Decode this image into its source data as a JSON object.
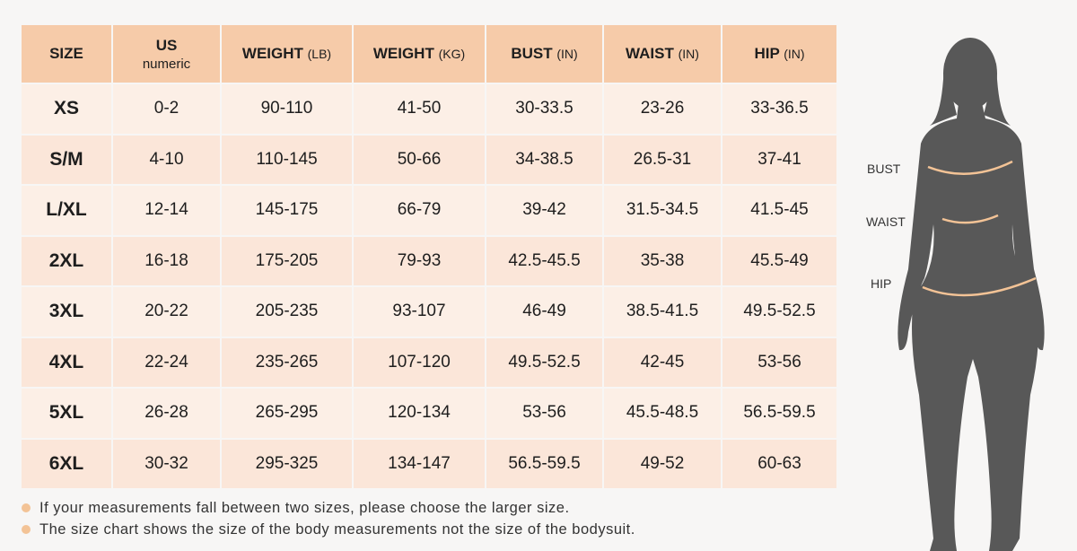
{
  "table": {
    "header": [
      {
        "text": "SIZE"
      },
      {
        "text": "US",
        "sub": "numeric"
      },
      {
        "text": "WEIGHT",
        "unit": "(LB)"
      },
      {
        "text": "WEIGHT",
        "unit": "(KG)"
      },
      {
        "text": "BUST",
        "unit": "(IN)"
      },
      {
        "text": "WAIST",
        "unit": "(IN)"
      },
      {
        "text": "HIP",
        "unit": "(IN)"
      }
    ],
    "rows": [
      [
        "XS",
        "0-2",
        "90-110",
        "41-50",
        "30-33.5",
        "23-26",
        "33-36.5"
      ],
      [
        "S/M",
        "4-10",
        "110-145",
        "50-66",
        "34-38.5",
        "26.5-31",
        "37-41"
      ],
      [
        "L/XL",
        "12-14",
        "145-175",
        "66-79",
        "39-42",
        "31.5-34.5",
        "41.5-45"
      ],
      [
        "2XL",
        "16-18",
        "175-205",
        "79-93",
        "42.5-45.5",
        "35-38",
        "45.5-49"
      ],
      [
        "3XL",
        "20-22",
        "205-235",
        "93-107",
        "46-49",
        "38.5-41.5",
        "49.5-52.5"
      ],
      [
        "4XL",
        "22-24",
        "235-265",
        "107-120",
        "49.5-52.5",
        "42-45",
        "53-56"
      ],
      [
        "5XL",
        "26-28",
        "265-295",
        "120-134",
        "53-56",
        "45.5-48.5",
        "56.5-59.5"
      ],
      [
        "6XL",
        "30-32",
        "295-325",
        "134-147",
        "56.5-59.5",
        "49-52",
        "60-63"
      ]
    ]
  },
  "notes": [
    "If your measurements fall between two sizes, please choose the larger size.",
    "The size chart shows the size of the body measurements not the size of the bodysuit."
  ],
  "figure": {
    "labels": [
      "BUST",
      "WAIST",
      "HIP"
    ]
  }
}
